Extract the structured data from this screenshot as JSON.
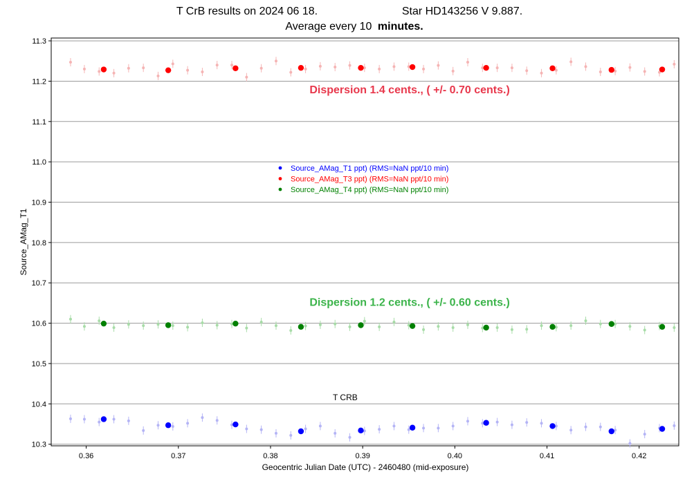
{
  "chart_data": {
    "type": "scatter",
    "title_line1": "T CrB results on 2024 06 18.",
    "title_star": "Star  HD143256 V 9.887.",
    "title_line2": "Average every 10",
    "title_line2_bold": "minutes.",
    "xlabel": "Geocentric Julian Date (UTC) - 2460480 (mid-exposure)",
    "ylabel": "Source_AMag_T1",
    "xlim": [
      0.3562,
      0.4243
    ],
    "ylim": [
      10.296,
      11.307
    ],
    "xticks": [
      "0.36",
      "0.37",
      "0.38",
      "0.39",
      "0.40",
      "0.41",
      "0.42"
    ],
    "yticks": [
      "10.3",
      "10.4",
      "10.5",
      "10.6",
      "10.7",
      "10.8",
      "10.9",
      "11.0",
      "11.1",
      "11.2",
      "11.3"
    ],
    "grid": "horizontal",
    "legend_placement": "center",
    "series": [
      {
        "name": "Source_AMag_T1 ppt)",
        "legend_suffix": "(RMS=NaN ppt/10 min)",
        "color": "#0000ff",
        "light_color": "#b4b4f5",
        "averages_x": [
          0.3619,
          0.3689,
          0.3762,
          0.3833,
          0.3898,
          0.3954,
          0.4034,
          0.4106,
          0.417,
          0.4225
        ],
        "averages_y": [
          10.362,
          10.347,
          10.349,
          10.332,
          10.334,
          10.341,
          10.353,
          10.345,
          10.332,
          10.338
        ],
        "points_x": [
          0.3583,
          0.3598,
          0.3614,
          0.363,
          0.3646,
          0.3662,
          0.3678,
          0.3694,
          0.371,
          0.3726,
          0.3742,
          0.3758,
          0.3774,
          0.379,
          0.3806,
          0.3822,
          0.3838,
          0.3854,
          0.387,
          0.3886,
          0.3902,
          0.3918,
          0.3934,
          0.395,
          0.3966,
          0.3982,
          0.3998,
          0.4014,
          0.403,
          0.4046,
          0.4062,
          0.4078,
          0.4094,
          0.411,
          0.4126,
          0.4142,
          0.4158,
          0.4174,
          0.419,
          0.4206,
          0.4222,
          0.4238
        ],
        "points_y": [
          10.363,
          10.362,
          10.355,
          10.362,
          10.358,
          10.334,
          10.347,
          10.344,
          10.352,
          10.366,
          10.359,
          10.348,
          10.338,
          10.336,
          10.327,
          10.322,
          10.338,
          10.345,
          10.327,
          10.317,
          10.333,
          10.337,
          10.345,
          10.336,
          10.34,
          10.34,
          10.345,
          10.357,
          10.352,
          10.355,
          10.348,
          10.354,
          10.352,
          10.345,
          10.335,
          10.343,
          10.343,
          10.335,
          10.302,
          10.325,
          10.34,
          10.346
        ]
      },
      {
        "name": "Source_AMag_T3 ppt)",
        "legend_suffix": "(RMS=NaN ppt/10 min)",
        "color": "#ff0000",
        "light_color": "#f5b4b4",
        "averages_x": [
          0.3619,
          0.3689,
          0.3762,
          0.3833,
          0.3898,
          0.3954,
          0.4034,
          0.4106,
          0.417,
          0.4225
        ],
        "averages_y": [
          11.229,
          11.227,
          11.232,
          11.233,
          11.233,
          11.235,
          11.233,
          11.232,
          11.228,
          11.229
        ],
        "points_x": [
          0.3583,
          0.3598,
          0.3614,
          0.363,
          0.3646,
          0.3662,
          0.3678,
          0.3694,
          0.371,
          0.3726,
          0.3742,
          0.3758,
          0.3774,
          0.379,
          0.3806,
          0.3822,
          0.3838,
          0.3854,
          0.387,
          0.3886,
          0.3902,
          0.3918,
          0.3934,
          0.395,
          0.3966,
          0.3982,
          0.3998,
          0.4014,
          0.403,
          0.4046,
          0.4062,
          0.4078,
          0.4094,
          0.411,
          0.4126,
          0.4142,
          0.4158,
          0.4174,
          0.419,
          0.4206,
          0.4222,
          0.4238
        ],
        "points_y": [
          11.247,
          11.23,
          11.224,
          11.22,
          11.232,
          11.233,
          11.213,
          11.243,
          11.227,
          11.223,
          11.24,
          11.24,
          11.21,
          11.232,
          11.25,
          11.222,
          11.23,
          11.237,
          11.235,
          11.239,
          11.233,
          11.23,
          11.236,
          11.236,
          11.23,
          11.239,
          11.225,
          11.247,
          11.233,
          11.233,
          11.233,
          11.226,
          11.22,
          11.227,
          11.248,
          11.236,
          11.223,
          11.225,
          11.234,
          11.224,
          11.222,
          11.242
        ]
      },
      {
        "name": "Source_AMag_T4 ppt)",
        "legend_suffix": "(RMS=NaN ppt/10 min)",
        "color": "#008000",
        "light_color": "#a8dca8",
        "averages_x": [
          0.3619,
          0.3689,
          0.3762,
          0.3833,
          0.3898,
          0.3954,
          0.4034,
          0.4106,
          0.417,
          0.4225
        ],
        "averages_y": [
          10.599,
          10.595,
          10.599,
          10.591,
          10.595,
          10.593,
          10.589,
          10.591,
          10.598,
          10.591
        ],
        "points_x": [
          0.3583,
          0.3598,
          0.3614,
          0.363,
          0.3646,
          0.3662,
          0.3678,
          0.3694,
          0.371,
          0.3726,
          0.3742,
          0.3758,
          0.3774,
          0.379,
          0.3806,
          0.3822,
          0.3838,
          0.3854,
          0.387,
          0.3886,
          0.3902,
          0.3918,
          0.3934,
          0.395,
          0.3966,
          0.3982,
          0.3998,
          0.4014,
          0.403,
          0.4046,
          0.4062,
          0.4078,
          0.4094,
          0.411,
          0.4126,
          0.4142,
          0.4158,
          0.4174,
          0.419,
          0.4206,
          0.4222,
          0.4238
        ],
        "points_y": [
          10.61,
          10.592,
          10.606,
          10.589,
          10.597,
          10.594,
          10.597,
          10.594,
          10.59,
          10.601,
          10.595,
          10.598,
          10.588,
          10.603,
          10.594,
          10.582,
          10.593,
          10.596,
          10.598,
          10.591,
          10.605,
          10.591,
          10.603,
          10.595,
          10.584,
          10.592,
          10.589,
          10.596,
          10.588,
          10.589,
          10.584,
          10.585,
          10.594,
          10.59,
          10.594,
          10.606,
          10.598,
          10.598,
          10.592,
          10.583,
          10.593,
          10.589
        ]
      }
    ],
    "annotations": [
      {
        "text": "Dispersion 1.4 cents., ( +/- 0.70 cents.)",
        "color": "#e8384c",
        "x": 0.3951,
        "y": 11.17
      },
      {
        "text": "Dispersion 1.2 cents., ( +/- 0.60 cents.)",
        "color": "#3cb44b",
        "x": 0.3951,
        "y": 10.643
      },
      {
        "text": "T CRB",
        "color": "#000000",
        "x": 0.3881,
        "y": 10.409
      }
    ]
  }
}
